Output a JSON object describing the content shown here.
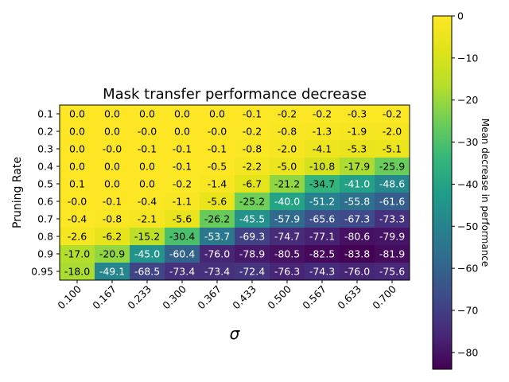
{
  "chart_data": {
    "type": "heatmap",
    "title": "Mask transfer performance decrease",
    "xlabel": "σ",
    "ylabel": "Pruning Rate",
    "x_tick_labels": [
      "0.100",
      "0.167",
      "0.233",
      "0.300",
      "0.367",
      "0.433",
      "0.500",
      "0.567",
      "0.633",
      "0.700"
    ],
    "y_tick_labels": [
      "0.1",
      "0.2",
      "0.3",
      "0.4",
      "0.5",
      "0.6",
      "0.7",
      "0.8",
      "0.9",
      "0.95"
    ],
    "cell_labels": [
      [
        "0.0",
        "0.0",
        "0.0",
        "0.0",
        "0.0",
        "-0.1",
        "-0.2",
        "-0.2",
        "-0.3",
        "-0.2"
      ],
      [
        "0.0",
        "0.0",
        "-0.0",
        "0.0",
        "-0.0",
        "-0.2",
        "-0.8",
        "-1.3",
        "-1.9",
        "-2.0"
      ],
      [
        "0.0",
        "-0.0",
        "-0.1",
        "-0.1",
        "-0.1",
        "-0.8",
        "-2.0",
        "-4.1",
        "-5.3",
        "-5.1"
      ],
      [
        "0.0",
        "0.0",
        "0.0",
        "-0.1",
        "-0.5",
        "-2.2",
        "-5.0",
        "-10.8",
        "-17.9",
        "-25.9"
      ],
      [
        "0.1",
        "0.0",
        "0.0",
        "-0.2",
        "-1.4",
        "-6.7",
        "-21.2",
        "-34.7",
        "-41.0",
        "-48.6"
      ],
      [
        "-0.0",
        "-0.1",
        "-0.4",
        "-1.1",
        "-5.6",
        "-25.2",
        "-40.0",
        "-51.2",
        "-55.8",
        "-61.6"
      ],
      [
        "-0.4",
        "-0.8",
        "-2.1",
        "-5.6",
        "-26.2",
        "-45.5",
        "-57.9",
        "-65.6",
        "-67.3",
        "-73.3"
      ],
      [
        "-2.6",
        "-6.2",
        "-15.2",
        "-30.4",
        "-53.7",
        "-69.3",
        "-74.7",
        "-77.1",
        "-80.6",
        "-79.9"
      ],
      [
        "-17.0",
        "-20.9",
        "-45.0",
        "-60.4",
        "-76.0",
        "-78.9",
        "-80.5",
        "-82.5",
        "-83.8",
        "-81.9"
      ],
      [
        "-18.0",
        "-49.1",
        "-68.5",
        "-73.4",
        "-73.4",
        "-72.4",
        "-76.3",
        "-74.3",
        "-76.0",
        "-75.6"
      ]
    ],
    "colorbar": {
      "label": "Mean decrease in performance",
      "range": [
        -84,
        0
      ],
      "ticks": [
        0,
        -10,
        -20,
        -30,
        -40,
        -50,
        -60,
        -70,
        -80
      ],
      "tick_labels": [
        "0",
        "−10",
        "−20",
        "−30",
        "−40",
        "−50",
        "−60",
        "−70",
        "−80"
      ],
      "colormap": "viridis"
    }
  }
}
